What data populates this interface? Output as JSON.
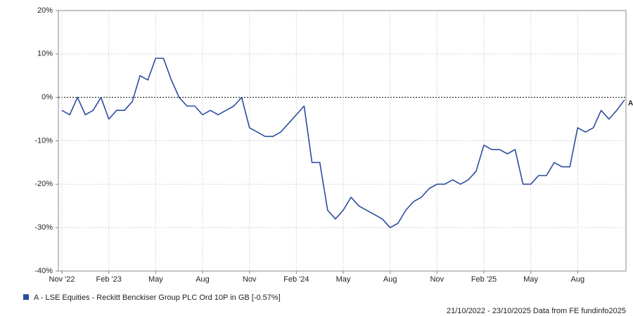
{
  "chart_data": {
    "type": "line",
    "categories": [
      "Nov '22",
      null,
      null,
      null,
      null,
      null,
      "Feb '23",
      null,
      null,
      null,
      null,
      null,
      "May",
      null,
      null,
      null,
      null,
      null,
      "Aug",
      null,
      null,
      null,
      null,
      null,
      "Nov",
      null,
      null,
      null,
      null,
      null,
      "Feb '24",
      null,
      null,
      null,
      null,
      null,
      "May",
      null,
      null,
      null,
      null,
      null,
      "Aug",
      null,
      null,
      null,
      null,
      null,
      "Nov",
      null,
      null,
      null,
      null,
      null,
      "Feb '25",
      null,
      null,
      null,
      null,
      null,
      "May",
      null,
      null,
      null,
      null,
      null,
      "Aug",
      null,
      null,
      null,
      null,
      null,
      null
    ],
    "series": [
      {
        "name": "A - LSE Equities - Reckitt Benckiser Group PLC Ord 10P in GB [-0.57%]",
        "color": "#2b4c9e",
        "values": [
          -3,
          -4,
          0,
          -4,
          -3,
          0,
          -5,
          -3,
          -3,
          -1,
          5,
          4,
          9,
          9,
          4,
          0,
          -2,
          -2,
          -4,
          -3,
          -4,
          -3,
          -2,
          0,
          -7,
          -8,
          -9,
          -9,
          -8,
          -6,
          -4,
          -2,
          -15,
          -15,
          -26,
          -28,
          -26,
          -23,
          -25,
          -26,
          -27,
          -28,
          -30,
          -29,
          -26,
          -24,
          -23,
          -21,
          -20,
          -20,
          -19,
          -20,
          -19,
          -17,
          -11,
          -12,
          -12,
          -13,
          -12,
          -20,
          -20,
          -18,
          -18,
          -15,
          -16,
          -16,
          -7,
          -8,
          -7,
          -3,
          -5,
          -3,
          -0.57
        ]
      }
    ],
    "end_label": "A",
    "ylim": [
      -40,
      20
    ],
    "yticks": [
      {
        "value": -40,
        "label": "-40%"
      },
      {
        "value": -30,
        "label": "-30%"
      },
      {
        "value": -20,
        "label": "-20%"
      },
      {
        "value": -10,
        "label": "-10%"
      },
      {
        "value": 0,
        "label": "0%"
      },
      {
        "value": 10,
        "label": "10%"
      },
      {
        "value": 20,
        "label": "20%"
      }
    ],
    "grid": true,
    "footer": "21/10/2022 - 23/10/2025 Data from FE fundinfo2025"
  }
}
